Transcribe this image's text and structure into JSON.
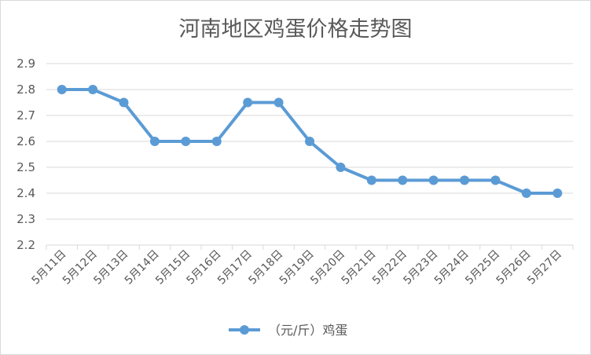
{
  "chart_data": {
    "type": "line",
    "title": "河南地区鸡蛋价格走势图",
    "xlabel": "",
    "ylabel": "",
    "categories": [
      "5月11日",
      "5月12日",
      "5月13日",
      "5月14日",
      "5月15日",
      "5月16日",
      "5月17日",
      "5月18日",
      "5月19日",
      "5月20日",
      "5月21日",
      "5月22日",
      "5月23日",
      "5月24日",
      "5月25日",
      "5月26日",
      "5月27日"
    ],
    "series": [
      {
        "name": "（元/斤）鸡蛋",
        "color": "#5b9bd5",
        "values": [
          2.8,
          2.8,
          2.75,
          2.6,
          2.6,
          2.6,
          2.75,
          2.75,
          2.6,
          2.5,
          2.45,
          2.45,
          2.45,
          2.45,
          2.45,
          2.4,
          2.4
        ]
      }
    ],
    "ylim": [
      2.2,
      2.9
    ],
    "yticks": [
      "2.2",
      "2.3",
      "2.4",
      "2.5",
      "2.6",
      "2.7",
      "2.8",
      "2.9"
    ],
    "grid": true,
    "legend": "bottom"
  }
}
